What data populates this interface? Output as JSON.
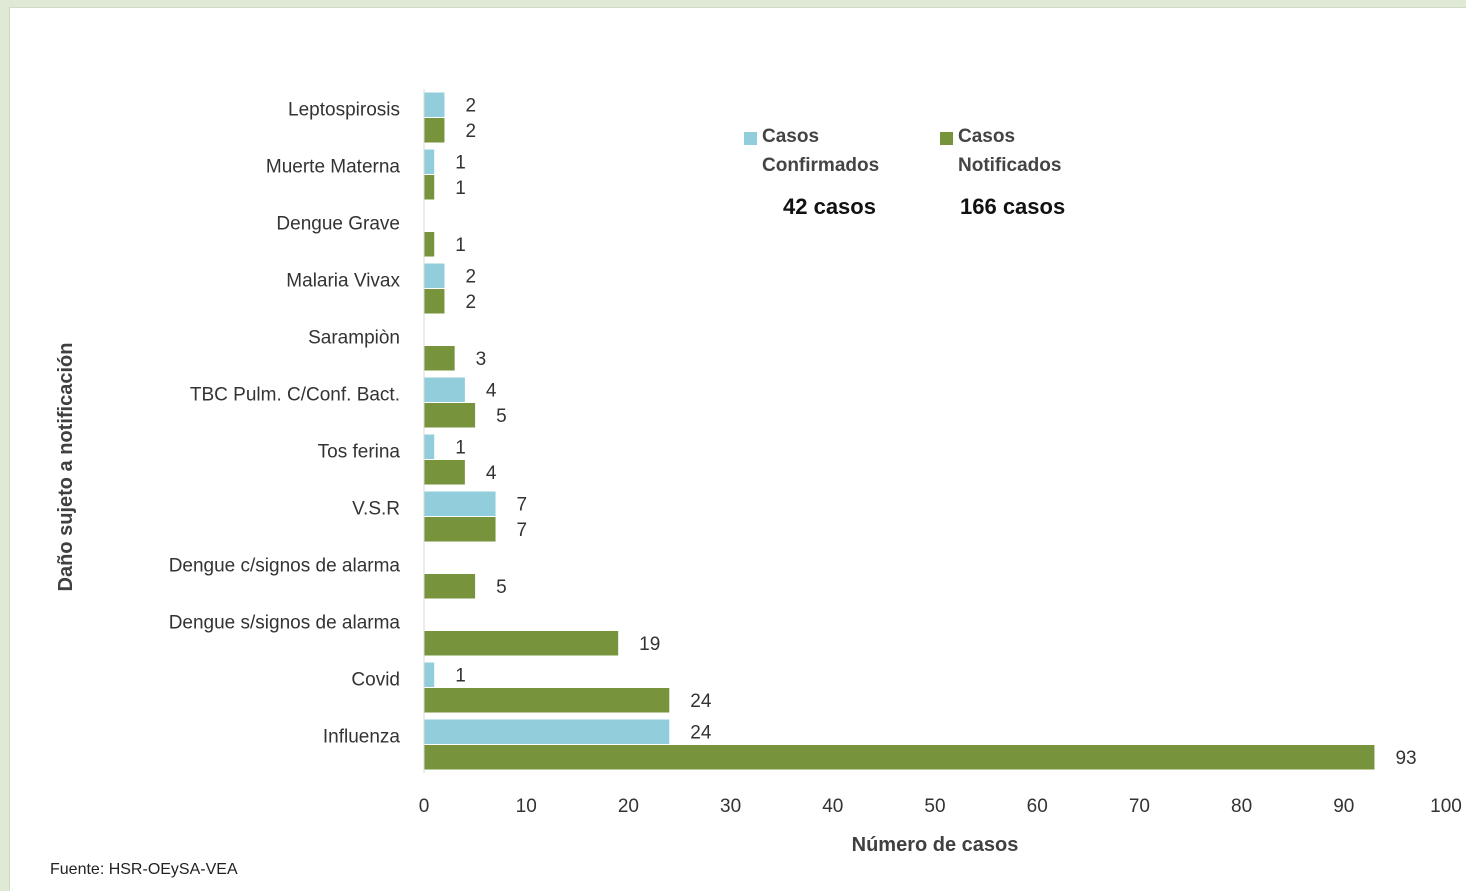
{
  "chart_data": {
    "type": "bar",
    "orientation": "horizontal",
    "categories": [
      "Leptospirosis",
      "Muerte Materna",
      "Dengue Grave",
      "Malaria Vivax",
      "Sarampiòn",
      "TBC Pulm. C/Conf. Bact.",
      "Tos ferina",
      "V.S.R",
      "Dengue c/signos de alarma",
      "Dengue s/signos de alarma",
      "Covid",
      "Influenza"
    ],
    "series": [
      {
        "name": "Casos Confirmados",
        "color": "#92cddc",
        "values": [
          2,
          1,
          null,
          2,
          null,
          4,
          1,
          7,
          null,
          null,
          1,
          24
        ]
      },
      {
        "name": "Casos Notificados",
        "color": "#77933c",
        "values": [
          2,
          1,
          1,
          2,
          3,
          5,
          4,
          7,
          5,
          19,
          24,
          93
        ]
      }
    ],
    "xlabel": "Número de casos",
    "ylabel": "Daño sujeto a notificación",
    "xlim": [
      0,
      100
    ],
    "xticks": [
      0,
      10,
      20,
      30,
      40,
      50,
      60,
      70,
      80,
      90,
      100
    ],
    "grid": false,
    "legend_position": "top-right",
    "legend": [
      {
        "line1": "Casos",
        "line2": "Confirmados",
        "total": "42  casos",
        "color": "#92cddc"
      },
      {
        "line1": "Casos",
        "line2": "Notificados",
        "total": "166  casos",
        "color": "#77933c"
      }
    ]
  },
  "footer": {
    "source": "Fuente: HSR-OEySA-VEA"
  }
}
